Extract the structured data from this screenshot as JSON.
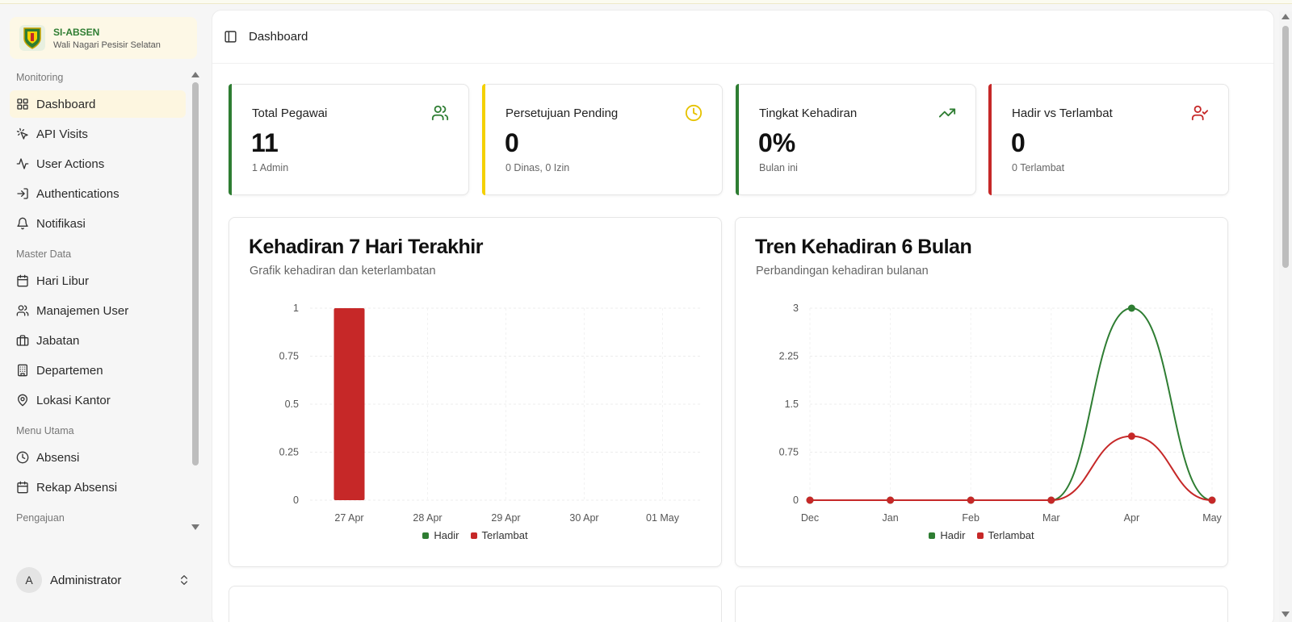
{
  "brand": {
    "title": "SI-ABSEN",
    "subtitle": "Wali Nagari Pesisir Selatan"
  },
  "sidebar": {
    "groups": [
      {
        "label": "Monitoring",
        "items": [
          {
            "label": "Dashboard",
            "icon": "layout-grid-icon",
            "active": true
          },
          {
            "label": "API Visits",
            "icon": "pointer-click-icon"
          },
          {
            "label": "User Actions",
            "icon": "activity-icon"
          },
          {
            "label": "Authentications",
            "icon": "login-icon"
          },
          {
            "label": "Notifikasi",
            "icon": "bell-icon"
          }
        ]
      },
      {
        "label": "Master Data",
        "items": [
          {
            "label": "Hari Libur",
            "icon": "calendar-icon"
          },
          {
            "label": "Manajemen User",
            "icon": "users-icon"
          },
          {
            "label": "Jabatan",
            "icon": "briefcase-icon"
          },
          {
            "label": "Departemen",
            "icon": "building-icon"
          },
          {
            "label": "Lokasi Kantor",
            "icon": "map-pin-icon"
          }
        ]
      },
      {
        "label": "Menu Utama",
        "items": [
          {
            "label": "Absensi",
            "icon": "clock-icon"
          },
          {
            "label": "Rekap Absensi",
            "icon": "calendar-icon"
          }
        ]
      },
      {
        "label": "Pengajuan",
        "items": []
      }
    ]
  },
  "user": {
    "initial": "A",
    "name": "Administrator"
  },
  "header": {
    "title": "Dashboard"
  },
  "stats": [
    {
      "title": "Total Pegawai",
      "value": "11",
      "sub": "1 Admin",
      "color": "#2e7d32",
      "icon": "users-icon"
    },
    {
      "title": "Persetujuan Pending",
      "value": "0",
      "sub": "0 Dinas, 0 Izin",
      "color": "#f4d000",
      "icon": "clock-icon"
    },
    {
      "title": "Tingkat Kehadiran",
      "value": "0%",
      "sub": "Bulan ini",
      "color": "#2e7d32",
      "icon": "trending-up-icon"
    },
    {
      "title": "Hadir vs Terlambat",
      "value": "0",
      "sub": "0 Terlambat",
      "color": "#c62828",
      "icon": "user-check-icon"
    }
  ],
  "colors": {
    "hadir": "#2e7d32",
    "terlambat": "#c62828"
  },
  "chart_data": [
    {
      "type": "bar",
      "title": "Kehadiran 7 Hari Terakhir",
      "subtitle": "Grafik kehadiran dan keterlambatan",
      "categories": [
        "27 Apr",
        "28 Apr",
        "29 Apr",
        "30 Apr",
        "01 May"
      ],
      "series": [
        {
          "name": "Hadir",
          "values": [
            0,
            0,
            0,
            0,
            0
          ]
        },
        {
          "name": "Terlambat",
          "values": [
            1,
            0,
            0,
            0,
            0
          ]
        }
      ],
      "yticks": [
        "0",
        "0.25",
        "0.5",
        "0.75",
        "1"
      ],
      "ylim": [
        0,
        1
      ],
      "grid": true,
      "legend": "bottom"
    },
    {
      "type": "line",
      "title": "Tren Kehadiran 6 Bulan",
      "subtitle": "Perbandingan kehadiran bulanan",
      "categories": [
        "Dec",
        "Jan",
        "Feb",
        "Mar",
        "Apr",
        "May"
      ],
      "series": [
        {
          "name": "Hadir",
          "values": [
            0,
            0,
            0,
            0,
            3,
            0
          ]
        },
        {
          "name": "Terlambat",
          "values": [
            0,
            0,
            0,
            0,
            1,
            0
          ]
        }
      ],
      "yticks": [
        "0",
        "0.75",
        "1.5",
        "2.25",
        "3"
      ],
      "ylim": [
        0,
        3
      ],
      "grid": true,
      "legend": "bottom"
    }
  ]
}
